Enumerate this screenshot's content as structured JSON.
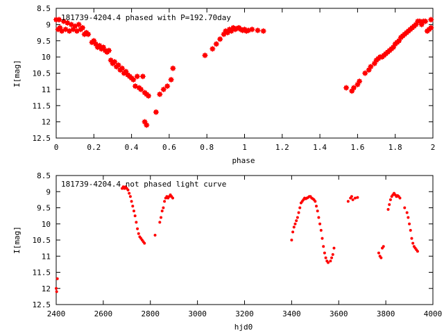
{
  "colors": {
    "series": "#ff0000",
    "axis": "#000000",
    "background": "#ffffff"
  },
  "chart_data": [
    {
      "type": "scatter",
      "title": "181739-4204.4 phased with P=192.70day",
      "xlabel": "phase",
      "ylabel": "I[mag]",
      "xlim": [
        0,
        2
      ],
      "ylim": [
        8.5,
        12.5
      ],
      "y_inverted": true,
      "grid": false,
      "xticks": [
        "0",
        "0.2",
        "0.4",
        "0.6",
        "0.8",
        "1",
        "1.2",
        "1.4",
        "1.6",
        "1.8",
        "2"
      ],
      "yticks": [
        "8.5",
        "9",
        "9.5",
        "10",
        "10.5",
        "11",
        "11.5",
        "12",
        "12.5"
      ],
      "series": [
        {
          "marker": "star",
          "points": [
            [
              0.0,
              8.85
            ],
            [
              0.01,
              9.15
            ],
            [
              0.015,
              8.85
            ],
            [
              0.02,
              9.1
            ],
            [
              0.03,
              9.2
            ],
            [
              0.04,
              8.9
            ],
            [
              0.05,
              9.15
            ],
            [
              0.06,
              8.95
            ],
            [
              0.07,
              9.2
            ],
            [
              0.08,
              9.0
            ],
            [
              0.09,
              9.15
            ],
            [
              0.1,
              9.05
            ],
            [
              0.11,
              9.2
            ],
            [
              0.12,
              9.0
            ],
            [
              0.13,
              9.15
            ],
            [
              0.14,
              9.1
            ],
            [
              0.15,
              9.3
            ],
            [
              0.16,
              9.25
            ],
            [
              0.17,
              9.3
            ],
            [
              0.19,
              9.55
            ],
            [
              0.2,
              9.5
            ],
            [
              0.21,
              9.6
            ],
            [
              0.22,
              9.7
            ],
            [
              0.23,
              9.65
            ],
            [
              0.24,
              9.75
            ],
            [
              0.25,
              9.7
            ],
            [
              0.26,
              9.8
            ],
            [
              0.27,
              9.85
            ],
            [
              0.28,
              9.8
            ],
            [
              0.29,
              10.1
            ],
            [
              0.3,
              10.2
            ],
            [
              0.31,
              10.15
            ],
            [
              0.32,
              10.3
            ],
            [
              0.33,
              10.25
            ],
            [
              0.34,
              10.4
            ],
            [
              0.35,
              10.35
            ],
            [
              0.36,
              10.5
            ],
            [
              0.37,
              10.45
            ],
            [
              0.38,
              10.55
            ],
            [
              0.39,
              10.6
            ],
            [
              0.4,
              10.65
            ],
            [
              0.41,
              10.7
            ],
            [
              0.42,
              10.9
            ],
            [
              0.43,
              10.6
            ],
            [
              0.44,
              10.95
            ],
            [
              0.45,
              11.0
            ],
            [
              0.46,
              10.6
            ],
            [
              0.47,
              11.1
            ],
            [
              0.48,
              11.15
            ],
            [
              0.49,
              11.2
            ],
            [
              0.47,
              12.0
            ],
            [
              0.48,
              12.1
            ],
            [
              0.53,
              11.7
            ],
            [
              0.55,
              11.15
            ],
            [
              0.57,
              11.0
            ],
            [
              0.59,
              10.9
            ],
            [
              0.61,
              10.7
            ],
            [
              0.62,
              10.35
            ],
            [
              0.79,
              9.95
            ],
            [
              0.83,
              9.75
            ],
            [
              0.85,
              9.6
            ],
            [
              0.87,
              9.45
            ],
            [
              0.89,
              9.3
            ],
            [
              0.9,
              9.2
            ],
            [
              0.91,
              9.25
            ],
            [
              0.92,
              9.15
            ],
            [
              0.93,
              9.2
            ],
            [
              0.94,
              9.1
            ],
            [
              0.95,
              9.15
            ],
            [
              0.96,
              9.12
            ],
            [
              0.97,
              9.1
            ],
            [
              0.98,
              9.15
            ],
            [
              0.99,
              9.18
            ],
            [
              1.0,
              9.15
            ],
            [
              1.01,
              9.2
            ],
            [
              1.02,
              9.18
            ],
            [
              1.04,
              9.15
            ],
            [
              1.07,
              9.18
            ],
            [
              1.1,
              9.2
            ],
            [
              1.54,
              10.95
            ],
            [
              1.57,
              11.05
            ],
            [
              1.58,
              10.95
            ],
            [
              1.6,
              10.85
            ],
            [
              1.61,
              10.75
            ],
            [
              1.64,
              10.5
            ],
            [
              1.66,
              10.4
            ],
            [
              1.67,
              10.3
            ],
            [
              1.69,
              10.2
            ],
            [
              1.7,
              10.1
            ],
            [
              1.71,
              10.05
            ],
            [
              1.72,
              10.0
            ],
            [
              1.73,
              10.0
            ],
            [
              1.74,
              9.95
            ],
            [
              1.75,
              9.9
            ],
            [
              1.76,
              9.85
            ],
            [
              1.77,
              9.8
            ],
            [
              1.78,
              9.75
            ],
            [
              1.79,
              9.7
            ],
            [
              1.8,
              9.6
            ],
            [
              1.81,
              9.55
            ],
            [
              1.82,
              9.5
            ],
            [
              1.83,
              9.4
            ],
            [
              1.84,
              9.35
            ],
            [
              1.85,
              9.3
            ],
            [
              1.86,
              9.25
            ],
            [
              1.87,
              9.2
            ],
            [
              1.88,
              9.15
            ],
            [
              1.89,
              9.1
            ],
            [
              1.9,
              9.05
            ],
            [
              1.91,
              9.0
            ],
            [
              1.92,
              8.9
            ],
            [
              1.93,
              8.9
            ],
            [
              1.94,
              9.0
            ],
            [
              1.95,
              8.9
            ],
            [
              1.96,
              8.9
            ],
            [
              1.97,
              9.2
            ],
            [
              1.98,
              9.15
            ],
            [
              1.99,
              9.1
            ],
            [
              1.99,
              8.85
            ]
          ]
        }
      ]
    },
    {
      "type": "scatter",
      "title": "181739-4204.4 not phased light curve",
      "xlabel": "hjd0",
      "ylabel": "I[mag]",
      "xlim": [
        2400,
        4000
      ],
      "ylim": [
        8.5,
        12.5
      ],
      "y_inverted": true,
      "grid": false,
      "xticks": [
        "2400",
        "2600",
        "2800",
        "3000",
        "3200",
        "3400",
        "3600",
        "3800",
        "4000"
      ],
      "yticks": [
        "8.5",
        "9",
        "9.5",
        "10",
        "10.5",
        "11",
        "11.5",
        "12",
        "12.5"
      ],
      "series": [
        {
          "marker": "dot",
          "points": [
            [
              2400,
              12.0
            ],
            [
              2402,
              12.1
            ],
            [
              2405,
              11.7
            ],
            [
              2680,
              8.9
            ],
            [
              2685,
              8.85
            ],
            [
              2690,
              8.9
            ],
            [
              2695,
              8.85
            ],
            [
              2700,
              8.9
            ],
            [
              2705,
              8.95
            ],
            [
              2710,
              9.05
            ],
            [
              2715,
              9.15
            ],
            [
              2720,
              9.3
            ],
            [
              2725,
              9.45
            ],
            [
              2730,
              9.6
            ],
            [
              2735,
              9.75
            ],
            [
              2740,
              9.95
            ],
            [
              2745,
              10.15
            ],
            [
              2750,
              10.3
            ],
            [
              2755,
              10.4
            ],
            [
              2760,
              10.45
            ],
            [
              2765,
              10.5
            ],
            [
              2770,
              10.55
            ],
            [
              2775,
              10.6
            ],
            [
              2820,
              10.35
            ],
            [
              2840,
              9.95
            ],
            [
              2845,
              9.8
            ],
            [
              2850,
              9.6
            ],
            [
              2855,
              9.5
            ],
            [
              2860,
              9.3
            ],
            [
              2865,
              9.2
            ],
            [
              2870,
              9.15
            ],
            [
              2875,
              9.2
            ],
            [
              2880,
              9.15
            ],
            [
              2885,
              9.1
            ],
            [
              2890,
              9.15
            ],
            [
              2895,
              9.2
            ],
            [
              3400,
              10.5
            ],
            [
              3405,
              10.25
            ],
            [
              3410,
              10.1
            ],
            [
              3415,
              10.0
            ],
            [
              3420,
              9.9
            ],
            [
              3425,
              9.8
            ],
            [
              3430,
              9.65
            ],
            [
              3435,
              9.5
            ],
            [
              3440,
              9.35
            ],
            [
              3445,
              9.3
            ],
            [
              3450,
              9.25
            ],
            [
              3455,
              9.2
            ],
            [
              3460,
              9.22
            ],
            [
              3465,
              9.2
            ],
            [
              3470,
              9.18
            ],
            [
              3475,
              9.15
            ],
            [
              3480,
              9.15
            ],
            [
              3485,
              9.2
            ],
            [
              3490,
              9.22
            ],
            [
              3495,
              9.25
            ],
            [
              3500,
              9.3
            ],
            [
              3505,
              9.45
            ],
            [
              3510,
              9.6
            ],
            [
              3515,
              9.8
            ],
            [
              3520,
              10.0
            ],
            [
              3525,
              10.2
            ],
            [
              3530,
              10.45
            ],
            [
              3535,
              10.7
            ],
            [
              3540,
              10.9
            ],
            [
              3545,
              11.05
            ],
            [
              3550,
              11.15
            ],
            [
              3555,
              11.2
            ],
            [
              3565,
              11.15
            ],
            [
              3570,
              11.05
            ],
            [
              3575,
              10.95
            ],
            [
              3580,
              10.75
            ],
            [
              3640,
              9.3
            ],
            [
              3650,
              9.2
            ],
            [
              3655,
              9.15
            ],
            [
              3660,
              9.25
            ],
            [
              3670,
              9.2
            ],
            [
              3680,
              9.18
            ],
            [
              3770,
              10.9
            ],
            [
              3775,
              11.0
            ],
            [
              3780,
              11.05
            ],
            [
              3785,
              10.75
            ],
            [
              3790,
              10.7
            ],
            [
              3810,
              9.55
            ],
            [
              3815,
              9.4
            ],
            [
              3820,
              9.25
            ],
            [
              3825,
              9.15
            ],
            [
              3830,
              9.1
            ],
            [
              3835,
              9.05
            ],
            [
              3840,
              9.1
            ],
            [
              3845,
              9.15
            ],
            [
              3850,
              9.12
            ],
            [
              3855,
              9.15
            ],
            [
              3860,
              9.2
            ],
            [
              3880,
              9.5
            ],
            [
              3890,
              9.65
            ],
            [
              3895,
              9.8
            ],
            [
              3900,
              10.0
            ],
            [
              3905,
              10.2
            ],
            [
              3910,
              10.45
            ],
            [
              3915,
              10.6
            ],
            [
              3920,
              10.7
            ],
            [
              3925,
              10.75
            ],
            [
              3930,
              10.8
            ],
            [
              3935,
              10.85
            ]
          ]
        }
      ]
    }
  ]
}
